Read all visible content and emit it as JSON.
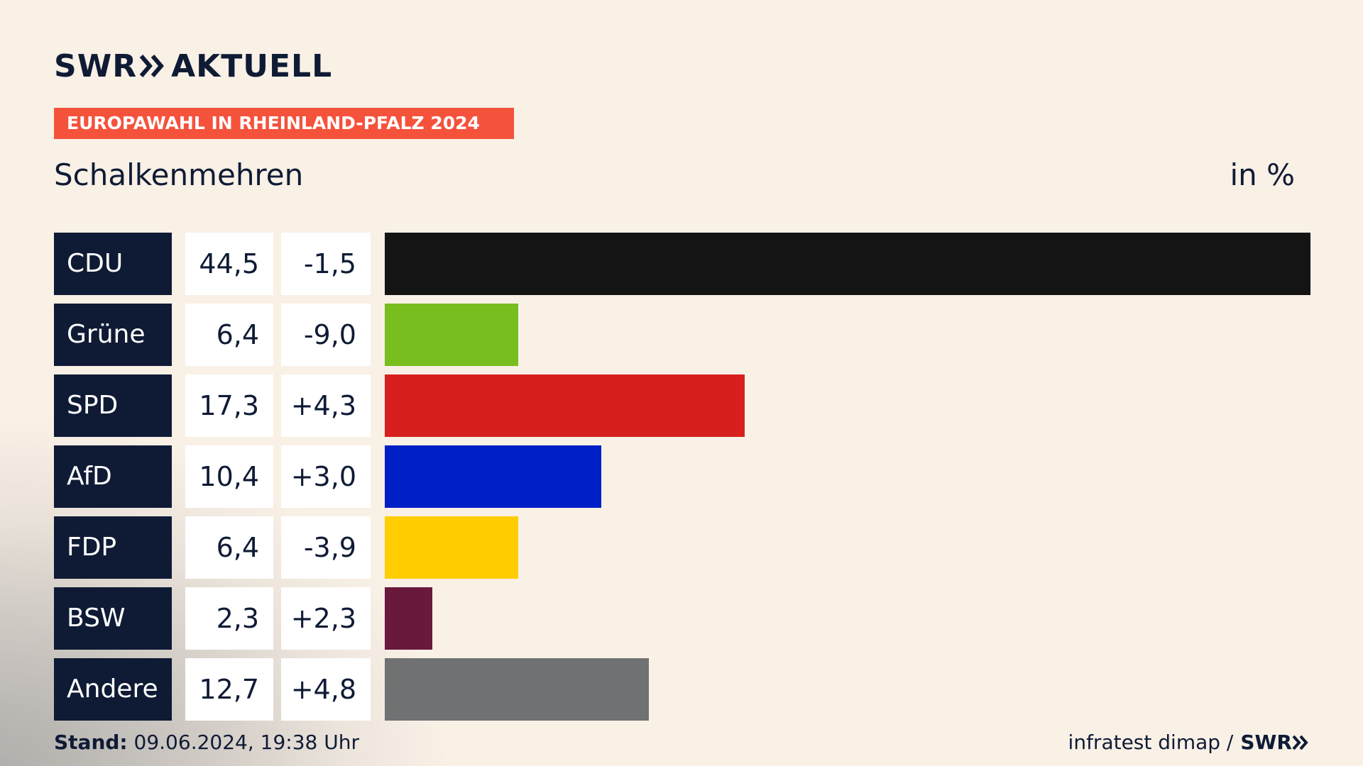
{
  "brand": {
    "logo_left": "SWR",
    "logo_right": "AKTUELL",
    "footer_logo": "SWR"
  },
  "banner": "EUROPAWAHL IN RHEINLAND-PFALZ 2024",
  "subtitle": "Schalkenmehren",
  "unit": "in %",
  "footer": {
    "stand_label": "Stand:",
    "stand_value": "09.06.2024, 19:38 Uhr",
    "source": "infratest dimap /"
  },
  "colors": {
    "navy": "#0f1b35",
    "banner": "#f5523c",
    "background": "#f9f0e6"
  },
  "chart_data": {
    "type": "bar",
    "orientation": "horizontal",
    "categories": [
      "CDU",
      "Grüne",
      "SPD",
      "AfD",
      "FDP",
      "BSW",
      "Andere"
    ],
    "values": [
      44.5,
      6.4,
      17.3,
      10.4,
      6.4,
      2.3,
      12.7
    ],
    "value_labels": [
      "44,5",
      "6,4",
      "17,3",
      "10,4",
      "6,4",
      "2,3",
      "12,7"
    ],
    "diff_labels": [
      "-1,5",
      "-9,0",
      "+4,3",
      "+3,0",
      "-3,9",
      "+2,3",
      "+4,8"
    ],
    "colors": [
      "#141414",
      "#78be1e",
      "#d71f1d",
      "#001fc6",
      "#ffcd00",
      "#69193c",
      "#707173"
    ]
  }
}
